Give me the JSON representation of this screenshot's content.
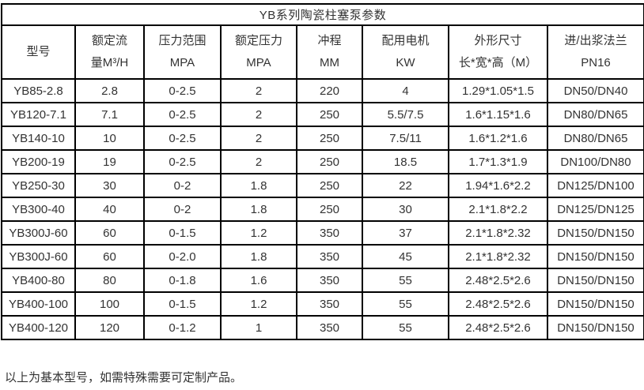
{
  "table": {
    "title": "YB系列陶瓷柱塞泵参数",
    "columns": [
      {
        "line1": "型号",
        "line2": ""
      },
      {
        "line1": "额定流",
        "line2": "量M³/H"
      },
      {
        "line1": "压力范围",
        "line2": "MPA"
      },
      {
        "line1": "额定压力",
        "line2": "MPA"
      },
      {
        "line1": "冲程",
        "line2": "MM"
      },
      {
        "line1": "配用电机",
        "line2": "KW"
      },
      {
        "line1": "外形尺寸",
        "line2": "长*宽*高（M）"
      },
      {
        "line1": "进/出浆法兰",
        "line2": "PN16"
      }
    ],
    "rows": [
      [
        "YB85-2.8",
        "2.8",
        "0-2.5",
        "2",
        "220",
        "4",
        "1.29*1.05*1.5",
        "DN50/DN40"
      ],
      [
        "YB120-7.1",
        "7.1",
        "0-2.5",
        "2",
        "250",
        "5.5/7.5",
        "1.6*1.15*1.6",
        "DN80/DN65"
      ],
      [
        "YB140-10",
        "10",
        "0-2.5",
        "2",
        "250",
        "7.5/11",
        "1.6*1.2*1.6",
        "DN80/DN65"
      ],
      [
        "YB200-19",
        "19",
        "0-2.5",
        "2",
        "250",
        "18.5",
        "1.7*1.3*1.9",
        "DN100/DN80"
      ],
      [
        "YB250-30",
        "30",
        "0-2",
        "1.8",
        "250",
        "22",
        "1.94*1.6*2.2",
        "DN125/DN100"
      ],
      [
        "YB300-40",
        "40",
        "0-2",
        "1.8",
        "250",
        "30",
        "2.1*1.8*2.2",
        "DN125/DN125"
      ],
      [
        "YB300J-60",
        "60",
        "0-1.5",
        "1.2",
        "350",
        "37",
        "2.1*1.8*2.32",
        "DN150/DN150"
      ],
      [
        "YB300J-60",
        "60",
        "0-2.0",
        "1.8",
        "350",
        "45",
        "2.1*1.8*2.32",
        "DN150/DN150"
      ],
      [
        "YB400-80",
        "80",
        "0-1.8",
        "1.6",
        "350",
        "55",
        "2.48*2.5*2.6",
        "DN150/DN150"
      ],
      [
        "YB400-100",
        "100",
        "0-1.5",
        "1.2",
        "350",
        "55",
        "2.48*2.5*2.6",
        "DN150/DN150"
      ],
      [
        "YB400-120",
        "120",
        "0-1.2",
        "1",
        "350",
        "55",
        "2.48*2.5*2.6",
        "DN150/DN150"
      ]
    ]
  },
  "footer": {
    "note": "以上为基本型号，如需特殊需要可定制产品。"
  },
  "colors": {
    "border": "#000000",
    "text": "#333333",
    "background": "#ffffff"
  }
}
